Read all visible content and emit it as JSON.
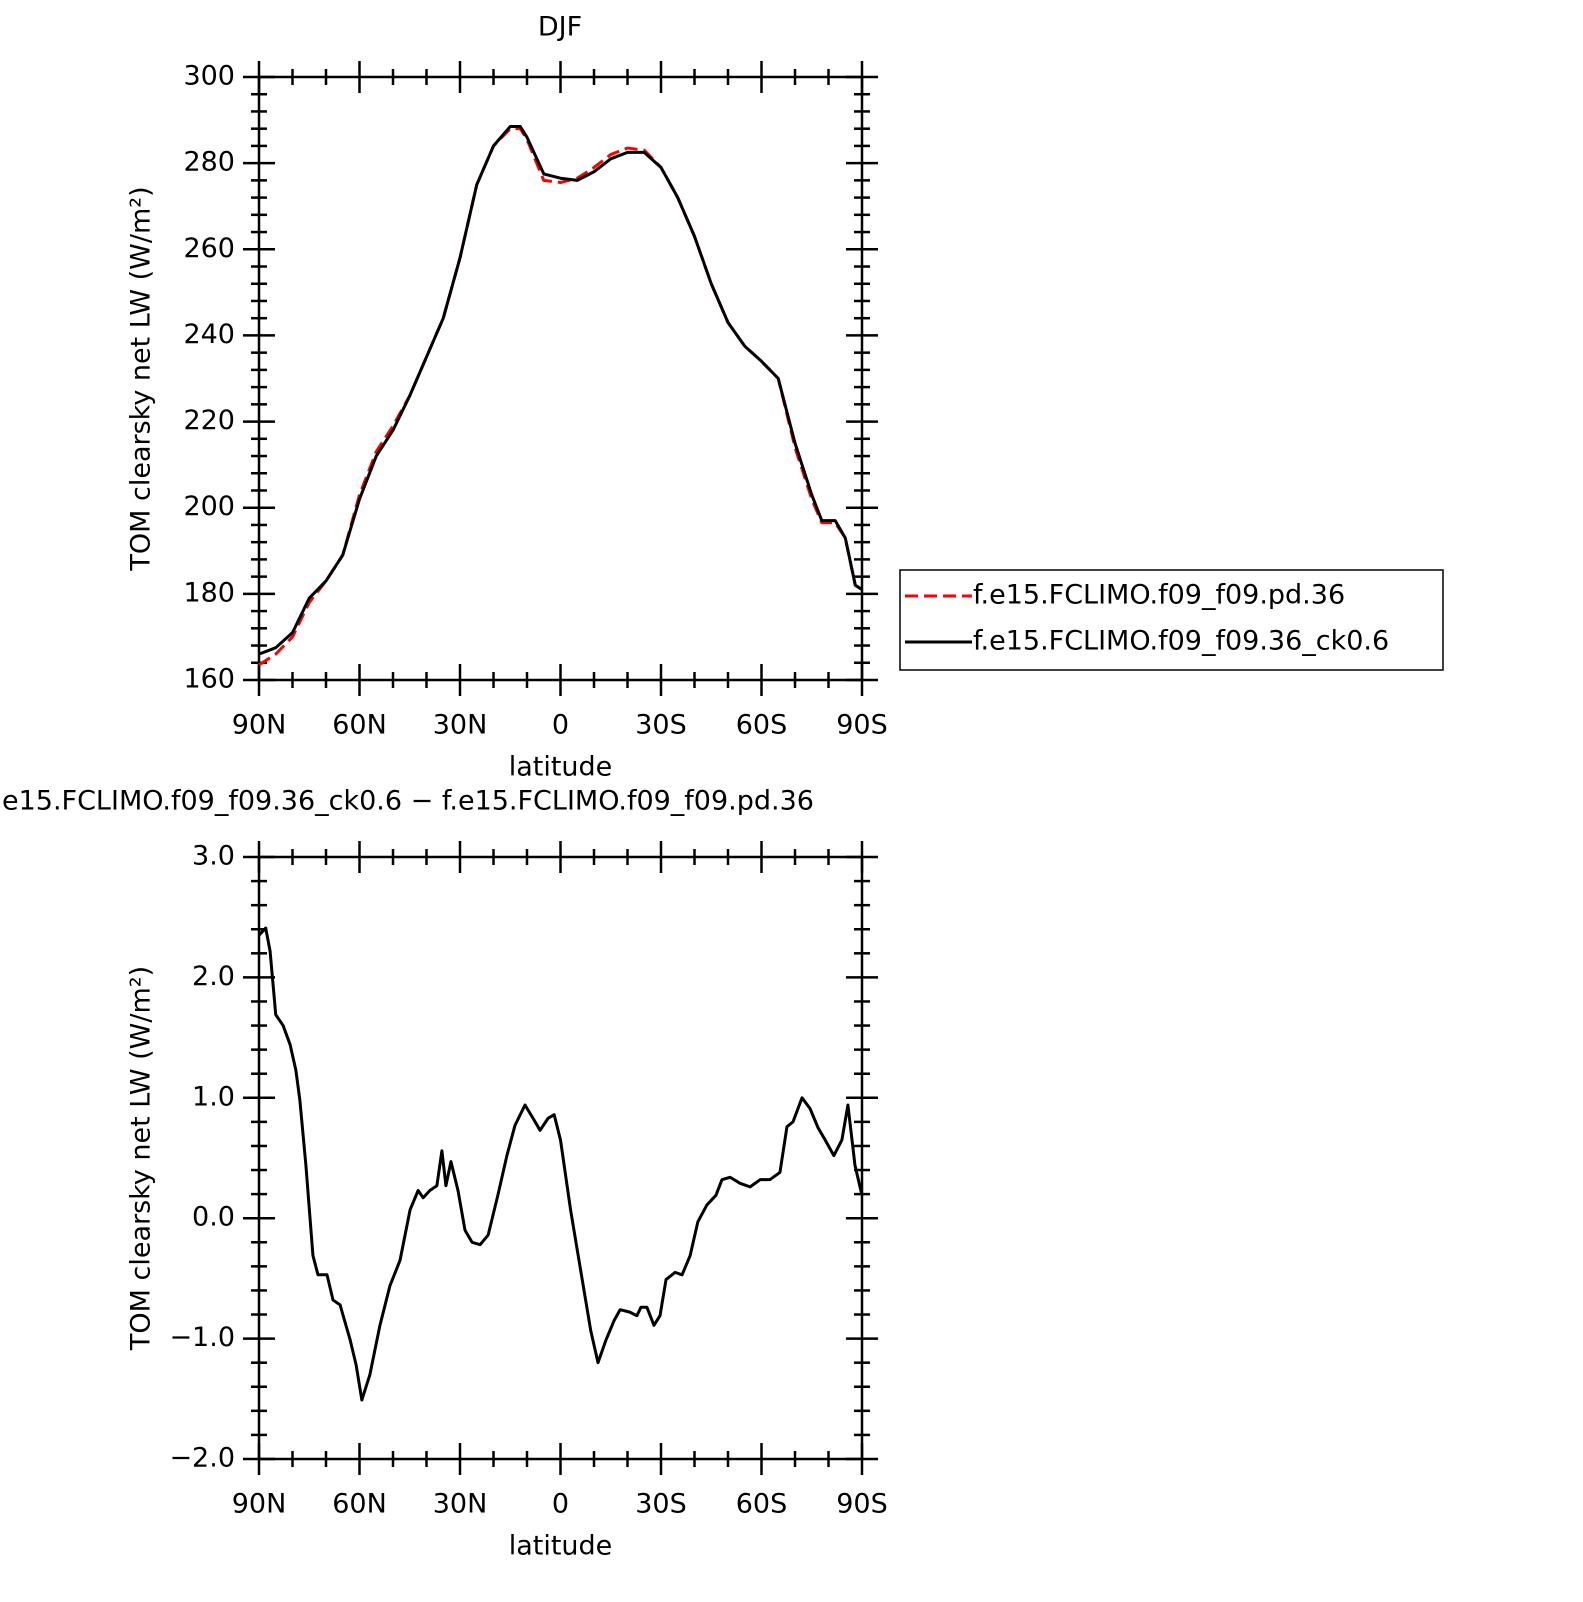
{
  "chart_data": [
    {
      "type": "line",
      "title": "DJF",
      "xlabel": "latitude",
      "ylabel": "TOM clearsky net LW (W/m²)",
      "xlim": [
        90,
        -90
      ],
      "xticks": [
        {
          "value": 90,
          "label": "90N"
        },
        {
          "value": 60,
          "label": "60N"
        },
        {
          "value": 30,
          "label": "30N"
        },
        0,
        {
          "value": -30,
          "label": "30S"
        },
        {
          "value": -60,
          "label": "60S"
        },
        {
          "value": -90,
          "label": "90S"
        }
      ],
      "ylim": [
        160,
        300
      ],
      "yticks": [
        160,
        180,
        200,
        220,
        240,
        260,
        280,
        300
      ],
      "series": [
        {
          "name": "f.e15.FCLIMO.f09_f09.pd.36",
          "color": "#ff0000",
          "dash": true,
          "x": [
            90,
            85,
            80,
            75,
            70,
            65,
            60,
            55,
            50,
            45,
            40,
            35,
            30,
            25,
            20,
            15,
            12,
            10,
            5,
            0,
            -5,
            -10,
            -15,
            -20,
            -25,
            -30,
            -35,
            -40,
            -45,
            -50,
            -55,
            -60,
            -65,
            -70,
            -75,
            -78,
            -82,
            -85,
            -88,
            -90
          ],
          "values": [
            163.5,
            166,
            170,
            178,
            183,
            189,
            203,
            213,
            219,
            226,
            235,
            244,
            258,
            275,
            284,
            288,
            288,
            285.5,
            276,
            275.5,
            276.5,
            279,
            282,
            283.5,
            283,
            279,
            272,
            263,
            252,
            243,
            237.5,
            234,
            230,
            214,
            202,
            196.5,
            196.5,
            193,
            182,
            181
          ]
        },
        {
          "name": "f.e15.FCLIMO.f09_f09.36_ck0.6",
          "color": "#000000",
          "dash": false,
          "x": [
            90,
            85,
            80,
            75,
            70,
            65,
            60,
            55,
            50,
            45,
            40,
            35,
            30,
            25,
            20,
            15,
            12,
            10,
            5,
            0,
            -5,
            -10,
            -15,
            -20,
            -25,
            -30,
            -35,
            -40,
            -45,
            -50,
            -55,
            -60,
            -65,
            -70,
            -75,
            -78,
            -82,
            -85,
            -88,
            -90
          ],
          "values": [
            166,
            167.5,
            171,
            179,
            183,
            189,
            202,
            212,
            218,
            226,
            235,
            244,
            258,
            275,
            284,
            288.5,
            288.5,
            286,
            277.5,
            276.5,
            276,
            278,
            281,
            282.5,
            282.5,
            279,
            272,
            263,
            252,
            243,
            237.5,
            234,
            230,
            215,
            203,
            197,
            197,
            193,
            182,
            181
          ]
        }
      ]
    },
    {
      "type": "line",
      "title": "e15.FCLIMO.f09_f09.36_ck0.6 − f.e15.FCLIMO.f09_f09.pd.36",
      "xlabel": "latitude",
      "ylabel": "TOM clearsky net LW (W/m²)",
      "xlim": [
        90,
        -90
      ],
      "xticks": [
        {
          "value": 90,
          "label": "90N"
        },
        {
          "value": 60,
          "label": "60N"
        },
        {
          "value": 30,
          "label": "30N"
        },
        0,
        {
          "value": -30,
          "label": "30S"
        },
        {
          "value": -60,
          "label": "60S"
        },
        {
          "value": -90,
          "label": "90S"
        }
      ],
      "ylim": [
        -2,
        3
      ],
      "yticks": [
        {
          "value": -2,
          "label": "−2.0"
        },
        {
          "value": -1,
          "label": "−1.0"
        },
        {
          "value": 0,
          "label": "0.0"
        },
        {
          "value": 1,
          "label": "1.0"
        },
        {
          "value": 2,
          "label": "2.0"
        },
        {
          "value": 3,
          "label": "3.0"
        }
      ],
      "series": [
        {
          "color": "#000000",
          "dash": false,
          "x": [
            90,
            88,
            86.7,
            85,
            82.8,
            80.7,
            79,
            77.8,
            76,
            73.9,
            72.4,
            69.7,
            67.9,
            65.8,
            62.8,
            61,
            59.3,
            56.9,
            53.9,
            50.9,
            47.9,
            44.9,
            42.5,
            41,
            39,
            36.9,
            35.4,
            34.2,
            32.7,
            30.6,
            28.5,
            26.4,
            24,
            21.6,
            18.7,
            16,
            13.6,
            10.6,
            8.2,
            6.1,
            3.7,
            1.9,
            0,
            -3,
            -6,
            -9,
            -11.2,
            -13.6,
            -16,
            -17.8,
            -20.7,
            -22.8,
            -24,
            -25.8,
            -27.9,
            -29.7,
            -31.5,
            -34.2,
            -36.3,
            -38.7,
            -41,
            -43.7,
            -46.4,
            -48.2,
            -50.6,
            -53.6,
            -56.6,
            -59.6,
            -62.5,
            -65.5,
            -67.6,
            -69.4,
            -72.1,
            -74.5,
            -76.9,
            -79,
            -81.6,
            -84,
            -85.8,
            -87.9,
            -90
          ],
          "values": [
            2.35,
            2.41,
            2.22,
            1.69,
            1.6,
            1.44,
            1.23,
            0.98,
            0.44,
            -0.31,
            -0.47,
            -0.47,
            -0.68,
            -0.72,
            -1.01,
            -1.22,
            -1.51,
            -1.3,
            -0.89,
            -0.56,
            -0.35,
            0.07,
            0.23,
            0.17,
            0.23,
            0.27,
            0.56,
            0.27,
            0.47,
            0.23,
            -0.1,
            -0.2,
            -0.22,
            -0.14,
            0.19,
            0.52,
            0.77,
            0.94,
            0.83,
            0.73,
            0.83,
            0.86,
            0.65,
            0.07,
            -0.43,
            -0.93,
            -1.2,
            -1.01,
            -0.85,
            -0.76,
            -0.78,
            -0.81,
            -0.74,
            -0.74,
            -0.89,
            -0.81,
            -0.51,
            -0.45,
            -0.47,
            -0.31,
            -0.03,
            0.11,
            0.19,
            0.32,
            0.34,
            0.29,
            0.26,
            0.32,
            0.32,
            0.38,
            0.76,
            0.8,
            1.0,
            0.91,
            0.75,
            0.65,
            0.52,
            0.65,
            0.94,
            0.44,
            0.19
          ]
        }
      ]
    }
  ]
}
